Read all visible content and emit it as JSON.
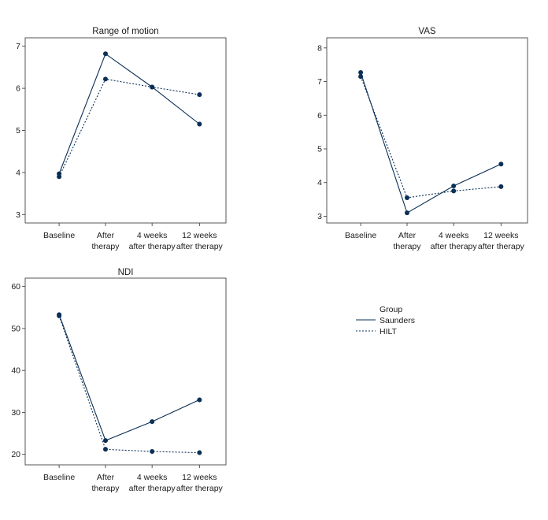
{
  "colors": {
    "series": "#0b2f55"
  },
  "categories": [
    [
      "Baseline"
    ],
    [
      "After",
      "therapy"
    ],
    [
      "4 weeks",
      "after therapy"
    ],
    [
      "12 weeks",
      "after therapy"
    ]
  ],
  "legend": {
    "title": "Group",
    "items": [
      "Saunders",
      "HILT"
    ]
  },
  "chart_data": [
    {
      "type": "line",
      "title": "Range of motion",
      "categories": [
        "Baseline",
        "After therapy",
        "4 weeks after therapy",
        "12 weeks after therapy"
      ],
      "ylim": [
        2.8,
        7.2
      ],
      "yticks": [
        3,
        4,
        5,
        6,
        7
      ],
      "series": [
        {
          "name": "Saunders",
          "values": [
            3.97,
            6.82,
            6.03,
            5.15
          ]
        },
        {
          "name": "HILT",
          "values": [
            3.9,
            6.22,
            6.03,
            5.85
          ]
        }
      ]
    },
    {
      "type": "line",
      "title": "VAS",
      "categories": [
        "Baseline",
        "After therapy",
        "4 weeks after therapy",
        "12 weeks after therapy"
      ],
      "ylim": [
        2.8,
        8.3
      ],
      "yticks": [
        3,
        4,
        5,
        6,
        7,
        8
      ],
      "series": [
        {
          "name": "Saunders",
          "values": [
            7.27,
            3.1,
            3.9,
            4.55
          ]
        },
        {
          "name": "HILT",
          "values": [
            7.15,
            3.55,
            3.75,
            3.88
          ]
        }
      ]
    },
    {
      "type": "line",
      "title": "NDI",
      "categories": [
        "Baseline",
        "After therapy",
        "4 weeks after therapy",
        "12 weeks after therapy"
      ],
      "ylim": [
        17.5,
        62
      ],
      "yticks": [
        20,
        30,
        40,
        50,
        60
      ],
      "series": [
        {
          "name": "Saunders",
          "values": [
            53.3,
            23.3,
            27.8,
            33.0
          ]
        },
        {
          "name": "HILT",
          "values": [
            53.0,
            21.2,
            20.7,
            20.4
          ]
        }
      ]
    }
  ]
}
